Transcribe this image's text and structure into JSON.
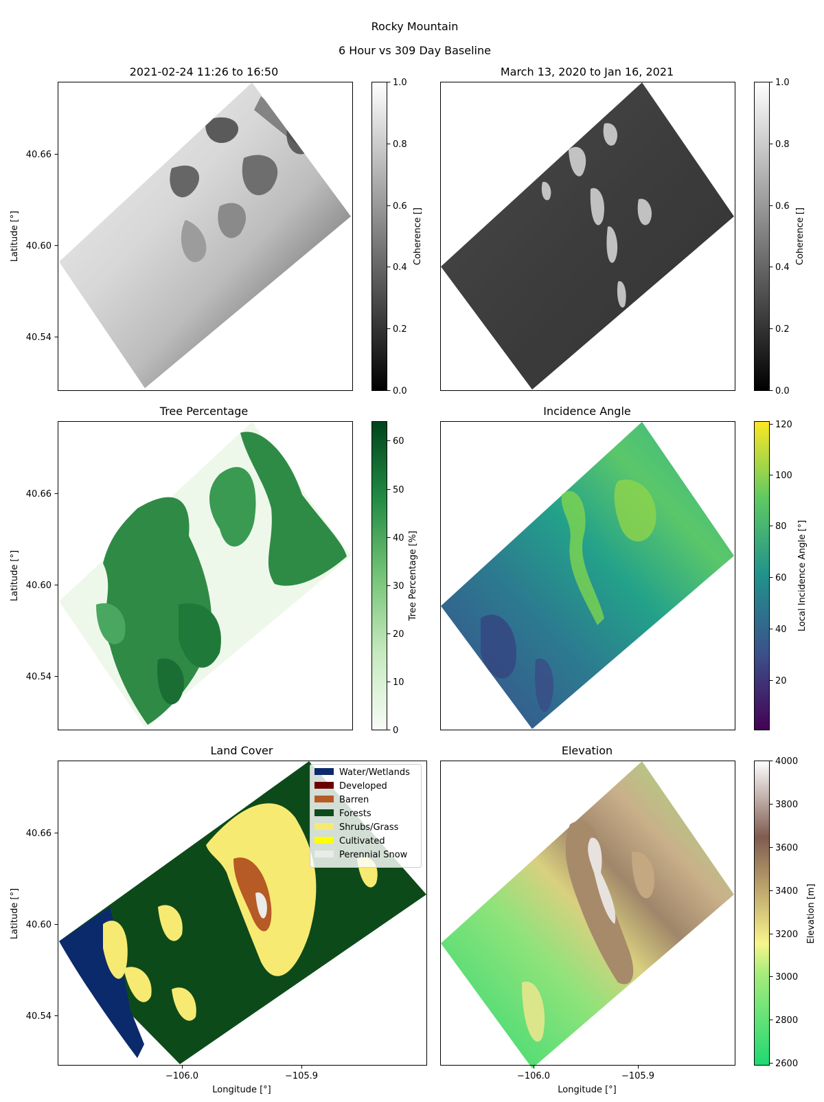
{
  "figure": {
    "title": "Rocky Mountain",
    "subtitle": "6 Hour vs 309 Day Baseline"
  },
  "colors": {
    "water_wetlands": "#0b2a6b",
    "developed": "#6b0000",
    "barren": "#b65a26",
    "forests": "#0d4a1a",
    "shrubs_grass": "#f7ea72",
    "cultivated": "#ffff00",
    "perennial_snow": "#e9ece9"
  },
  "chart_data": [
    {
      "type": "heatmap",
      "title": "2021-02-24 11:26 to 16:50",
      "ylabel": "Latitude [°]",
      "yticks": [
        "40.66",
        "40.60",
        "40.54"
      ],
      "colorbar": {
        "label": "Coherence []",
        "colormap": "gray",
        "range": [
          0.0,
          1.0
        ],
        "ticks": [
          "0.0",
          "0.2",
          "0.4",
          "0.6",
          "0.8",
          "1.0"
        ]
      }
    },
    {
      "type": "heatmap",
      "title": "March 13, 2020 to Jan 16, 2021",
      "colorbar": {
        "label": "Coherence []",
        "colormap": "gray",
        "range": [
          0.0,
          1.0
        ],
        "ticks": [
          "0.0",
          "0.2",
          "0.4",
          "0.6",
          "0.8",
          "1.0"
        ]
      }
    },
    {
      "type": "heatmap",
      "title": "Tree Percentage",
      "ylabel": "Latitude [°]",
      "yticks": [
        "40.66",
        "40.60",
        "40.54"
      ],
      "colorbar": {
        "label": "Tree Percentage [%]",
        "colormap": "Greens",
        "range": [
          0,
          64
        ],
        "ticks": [
          "0",
          "10",
          "20",
          "30",
          "40",
          "50",
          "60"
        ]
      }
    },
    {
      "type": "heatmap",
      "title": "Incidence Angle",
      "colorbar": {
        "label": "Local Incidence Angle [°]",
        "colormap": "viridis",
        "range": [
          0,
          122
        ],
        "ticks": [
          "20",
          "40",
          "60",
          "80",
          "100",
          "120"
        ]
      }
    },
    {
      "type": "heatmap",
      "title": "Land Cover",
      "ylabel": "Latitude [°]",
      "xlabel": "Longitude [°]",
      "yticks": [
        "40.66",
        "40.60",
        "40.54"
      ],
      "xticks": [
        "−106.0",
        "−105.9"
      ],
      "legend": {
        "placement": "top-right",
        "entries": [
          "Water/Wetlands",
          "Developed",
          "Barren",
          "Forests",
          "Shrubs/Grass",
          "Cultivated",
          "Perennial Snow"
        ]
      }
    },
    {
      "type": "heatmap",
      "title": "Elevation",
      "xlabel": "Longitude [°]",
      "xticks": [
        "−106.0",
        "−105.9"
      ],
      "colorbar": {
        "label": "Elevation [m]",
        "colormap": "terrain",
        "range": [
          2590,
          4000
        ],
        "ticks": [
          "2600",
          "2800",
          "3000",
          "3200",
          "3400",
          "3600",
          "3800",
          "4000"
        ]
      }
    }
  ]
}
